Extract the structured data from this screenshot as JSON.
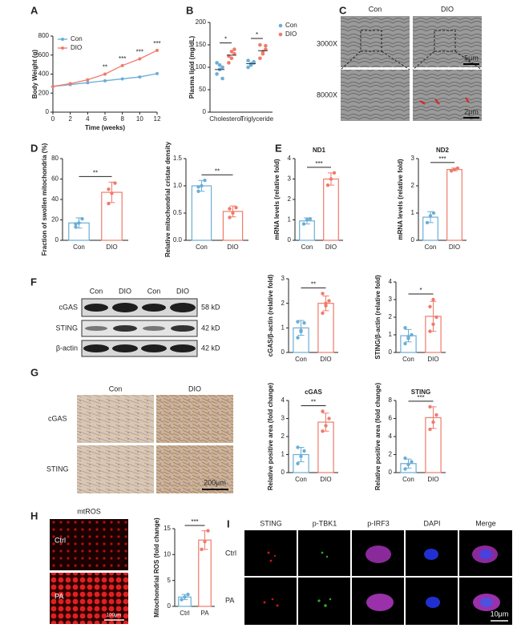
{
  "panel_letters": [
    "A",
    "B",
    "C",
    "D",
    "E",
    "F",
    "G",
    "H",
    "I"
  ],
  "em_images": {
    "columns": [
      "Con",
      "DIO"
    ],
    "rows": [
      "3000X",
      "8000X"
    ],
    "scale_bars": [
      "5μm",
      "2μm"
    ]
  },
  "blot": {
    "lanes": [
      "Con",
      "DIO",
      "Con",
      "DIO"
    ],
    "proteins": [
      "cGAS",
      "STING",
      "β-actin"
    ],
    "sizes": [
      "58 kD",
      "42 kD",
      "42 kD"
    ]
  },
  "ihc": {
    "columns": [
      "Con",
      "DIO"
    ],
    "rows": [
      "cGAS",
      "STING"
    ],
    "scale_bar": "200μm"
  },
  "ros_image": {
    "title": "mtROS",
    "rows": [
      "Ctrl",
      "PA"
    ],
    "scale_bar": "100μm"
  },
  "fluorescence": {
    "columns": [
      "STING",
      "p-TBK1",
      "p-IRF3",
      "DAPI",
      "Merge"
    ],
    "rows": [
      "Ctrl",
      "PA"
    ],
    "scale_bar": "10μm"
  },
  "chart_data": [
    {
      "type": "line",
      "y_label": "Body Weight (g)",
      "x_label": "Time (weeks)",
      "x": [
        0,
        2,
        4,
        6,
        8,
        10,
        12
      ],
      "xlim": [
        0,
        12
      ],
      "xticks": [
        0,
        2,
        4,
        6,
        8,
        10,
        12
      ],
      "ylim": [
        0,
        800
      ],
      "yticks": [
        0,
        200,
        400,
        600,
        800
      ],
      "series": [
        {
          "name": "Con",
          "color": "#6baed6",
          "values": [
            270,
            290,
            310,
            330,
            350,
            370,
            405
          ]
        },
        {
          "name": "DIO",
          "color": "#ef7b6b",
          "values": [
            270,
            300,
            340,
            400,
            490,
            560,
            650
          ]
        }
      ],
      "annotations": [
        {
          "x": 6,
          "text": "**"
        },
        {
          "x": 8,
          "text": "***"
        },
        {
          "x": 10,
          "text": "***"
        },
        {
          "x": 12,
          "text": "***"
        }
      ]
    },
    {
      "type": "dot",
      "y_label": "Plasma lipid (mg/dL)",
      "categories": [
        "Cholesterol",
        "Triglyceride"
      ],
      "ylim": [
        0,
        200
      ],
      "yticks": [
        0,
        50,
        100,
        150,
        200
      ],
      "significance": [
        "*",
        "*"
      ],
      "series": [
        {
          "name": "Con",
          "color": "#6baed6",
          "values": [
            95,
            108
          ],
          "points": [
            [
              85,
              95,
              100,
              110,
              105,
              75
            ],
            [
              100,
              105,
              110,
              115,
              108,
              112
            ]
          ]
        },
        {
          "name": "DIO",
          "color": "#ef7b6b",
          "values": [
            127,
            137
          ],
          "points": [
            [
              110,
              120,
              130,
              125,
              135,
              140
            ],
            [
              120,
              130,
              140,
              150,
              135,
              148
            ]
          ]
        }
      ]
    },
    {
      "type": "bar",
      "y_label": "Fraction of swollen mitochondria (%)",
      "categories": [
        "Con",
        "DIO"
      ],
      "colors": [
        "#6baed6",
        "#ef7b6b"
      ],
      "ylim": [
        0,
        80
      ],
      "yticks": [
        0,
        20,
        40,
        60,
        80
      ],
      "values": [
        17,
        47
      ],
      "errors": [
        5,
        10
      ],
      "points": [
        [
          13,
          17,
          21,
          16
        ],
        [
          36,
          46,
          56,
          50
        ]
      ],
      "significance": "**"
    },
    {
      "type": "bar",
      "y_label": "Relative mitochondrial cristae density",
      "categories": [
        "Con",
        "DIO"
      ],
      "colors": [
        "#6baed6",
        "#ef7b6b"
      ],
      "ylim": [
        0,
        1.5
      ],
      "yticks": [
        {
          "value": 0,
          "label": "0.0"
        },
        {
          "value": 0.5,
          "label": "0.5"
        },
        {
          "value": 1,
          "label": "1.0"
        },
        {
          "value": 1.5,
          "label": "1.5"
        }
      ],
      "values": [
        1.0,
        0.53
      ],
      "errors": [
        0.1,
        0.1
      ],
      "points": [
        [
          0.9,
          1.0,
          1.1,
          0.98
        ],
        [
          0.42,
          0.5,
          0.6,
          0.58
        ]
      ],
      "significance": "**"
    },
    {
      "type": "bar",
      "title": "ND1",
      "y_label": "mRNA levels (relative fold)",
      "categories": [
        "Con",
        "DIO"
      ],
      "colors": [
        "#6baed6",
        "#ef7b6b"
      ],
      "ylim": [
        0,
        4
      ],
      "yticks": [
        0,
        1,
        2,
        3,
        4
      ],
      "values": [
        0.95,
        3.0
      ],
      "errors": [
        0.15,
        0.3
      ],
      "points": [
        [
          0.8,
          1.0,
          1.05
        ],
        [
          2.7,
          3.0,
          3.3
        ]
      ],
      "significance": "***"
    },
    {
      "type": "bar",
      "title": "ND2",
      "y_label": "mRNA levels (relative fold)",
      "categories": [
        "Con",
        "DIO"
      ],
      "colors": [
        "#6baed6",
        "#ef7b6b"
      ],
      "ylim": [
        0,
        3
      ],
      "yticks": [
        0,
        1,
        2,
        3
      ],
      "values": [
        0.85,
        2.6
      ],
      "errors": [
        0.2,
        0.05
      ],
      "points": [
        [
          0.65,
          0.9,
          1.0
        ],
        [
          2.55,
          2.6,
          2.65
        ]
      ],
      "significance": "***"
    },
    {
      "type": "bar",
      "y_label": "cGAS/β-actin (relative fold)",
      "categories": [
        "Con",
        "DIO"
      ],
      "colors": [
        "#6baed6",
        "#ef7b6b"
      ],
      "ylim": [
        0,
        3
      ],
      "yticks": [
        0,
        1,
        2,
        3
      ],
      "values": [
        1.0,
        2.0
      ],
      "errors": [
        0.3,
        0.3
      ],
      "points": [
        [
          0.6,
          0.9,
          1.2,
          1.25,
          0.85
        ],
        [
          1.6,
          1.9,
          2.1,
          2.4,
          2.0
        ]
      ],
      "significance": "**"
    },
    {
      "type": "bar",
      "y_label": "STING/β-actin (relative fold)",
      "categories": [
        "Con",
        "DIO"
      ],
      "colors": [
        "#6baed6",
        "#ef7b6b"
      ],
      "ylim": [
        0,
        4
      ],
      "yticks": [
        0,
        1,
        2,
        3,
        4
      ],
      "values": [
        0.95,
        2.05
      ],
      "errors": [
        0.35,
        0.85
      ],
      "points": [
        [
          0.5,
          0.8,
          1.0,
          1.4,
          0.9
        ],
        [
          1.2,
          1.6,
          2.0,
          2.6,
          3.0
        ]
      ],
      "significance": "*"
    },
    {
      "type": "bar",
      "title": "cGAS",
      "y_label": "Relative positive area (fold change)",
      "categories": [
        "Con",
        "DIO"
      ],
      "colors": [
        "#6baed6",
        "#ef7b6b"
      ],
      "ylim": [
        0,
        4
      ],
      "yticks": [
        0,
        1,
        2,
        3,
        4
      ],
      "values": [
        1.0,
        2.8
      ],
      "errors": [
        0.4,
        0.5
      ],
      "points": [
        [
          0.5,
          0.9,
          1.2,
          1.4
        ],
        [
          2.3,
          2.6,
          3.0,
          3.4
        ]
      ],
      "significance": "**"
    },
    {
      "type": "bar",
      "title": "STING",
      "y_label": "Relative positive area (fold change)",
      "categories": [
        "Con",
        "DIO"
      ],
      "colors": [
        "#6baed6",
        "#ef7b6b"
      ],
      "ylim": [
        0,
        8
      ],
      "yticks": [
        0,
        2,
        4,
        6,
        8
      ],
      "values": [
        1.0,
        6.1
      ],
      "errors": [
        0.5,
        1.2
      ],
      "points": [
        [
          0.4,
          0.9,
          1.2,
          1.6
        ],
        [
          4.8,
          5.6,
          6.4,
          7.3
        ]
      ],
      "significance": "***"
    },
    {
      "type": "bar",
      "y_label": "Mitochondrial ROS (fold change)",
      "categories": [
        "Ctrl",
        "PA"
      ],
      "colors": [
        "#6baed6",
        "#ef7b6b"
      ],
      "ylim": [
        0,
        15
      ],
      "yticks": [
        0,
        5,
        10,
        15
      ],
      "values": [
        1.8,
        12.8
      ],
      "errors": [
        0.5,
        1.8
      ],
      "points": [
        [
          1.3,
          1.8,
          2.3
        ],
        [
          11.0,
          12.5,
          14.6
        ]
      ],
      "significance": "***"
    }
  ]
}
